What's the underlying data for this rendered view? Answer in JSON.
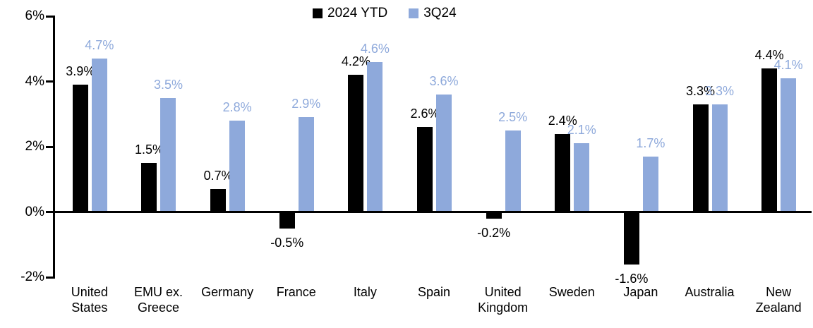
{
  "chart_data": {
    "type": "bar",
    "title": "",
    "categories": [
      "United States",
      "EMU ex. Greece",
      "Germany",
      "France",
      "Italy",
      "Spain",
      "United Kingdom",
      "Sweden",
      "Japan",
      "Australia",
      "New Zealand"
    ],
    "series": [
      {
        "name": "2024 YTD",
        "color": "#000000",
        "values": [
          3.9,
          1.5,
          0.7,
          -0.5,
          4.2,
          2.6,
          -0.2,
          2.4,
          -1.6,
          3.3,
          4.4
        ],
        "labels": [
          "3.9%",
          "1.5%",
          "0.7%",
          "-0.5%",
          "4.2%",
          "2.6%",
          "-0.2%",
          "2.4%",
          "-1.6%",
          "3.3%",
          "4.4%"
        ]
      },
      {
        "name": "3Q24",
        "color": "#8EA9DB",
        "values": [
          4.7,
          3.5,
          2.8,
          2.9,
          4.6,
          3.6,
          2.5,
          2.1,
          1.7,
          3.3,
          4.1
        ],
        "labels": [
          "4.7%",
          "3.5%",
          "2.8%",
          "2.9%",
          "4.6%",
          "3.6%",
          "2.5%",
          "2.1%",
          "1.7%",
          "3.3%",
          "4.1%"
        ]
      }
    ],
    "y_axis": {
      "min": -2,
      "max": 6,
      "tick_step": 2,
      "ticks": [
        6,
        4,
        2,
        0,
        -2
      ],
      "tick_labels": [
        "6%",
        "4%",
        "2%",
        "0%",
        "-2%"
      ]
    },
    "value_suffix": "%",
    "legend_position": "top-center",
    "grid": false,
    "colors": {
      "series_2024_ytd": "#000000",
      "series_3q24": "#8EA9DB",
      "axis": "#000000",
      "background": "#ffffff"
    }
  }
}
